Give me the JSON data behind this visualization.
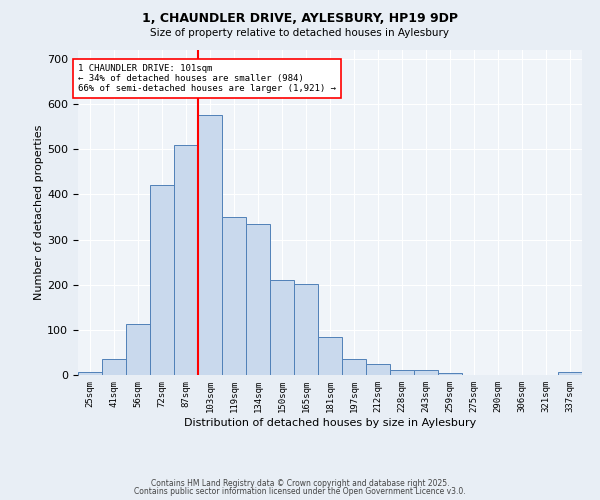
{
  "title1": "1, CHAUNDLER DRIVE, AYLESBURY, HP19 9DP",
  "title2": "Size of property relative to detached houses in Aylesbury",
  "xlabel": "Distribution of detached houses by size in Aylesbury",
  "ylabel": "Number of detached properties",
  "bar_labels": [
    "25sqm",
    "41sqm",
    "56sqm",
    "72sqm",
    "87sqm",
    "103sqm",
    "119sqm",
    "134sqm",
    "150sqm",
    "165sqm",
    "181sqm",
    "197sqm",
    "212sqm",
    "228sqm",
    "243sqm",
    "259sqm",
    "275sqm",
    "290sqm",
    "306sqm",
    "321sqm",
    "337sqm"
  ],
  "bar_values": [
    7,
    35,
    113,
    420,
    510,
    575,
    350,
    335,
    210,
    202,
    85,
    35,
    25,
    12,
    12,
    4,
    0,
    0,
    0,
    0,
    7
  ],
  "bar_color": "#c9d9ed",
  "bar_edge_color": "#5080b8",
  "vline_color": "red",
  "annotation_text": "1 CHAUNDLER DRIVE: 101sqm\n← 34% of detached houses are smaller (984)\n66% of semi-detached houses are larger (1,921) →",
  "annotation_box_color": "white",
  "annotation_box_edge_color": "red",
  "ylim": [
    0,
    720
  ],
  "yticks": [
    0,
    100,
    200,
    300,
    400,
    500,
    600,
    700
  ],
  "footnote1": "Contains HM Land Registry data © Crown copyright and database right 2025.",
  "footnote2": "Contains public sector information licensed under the Open Government Licence v3.0.",
  "bg_color": "#e8eef5",
  "plot_bg_color": "#f0f4f9"
}
